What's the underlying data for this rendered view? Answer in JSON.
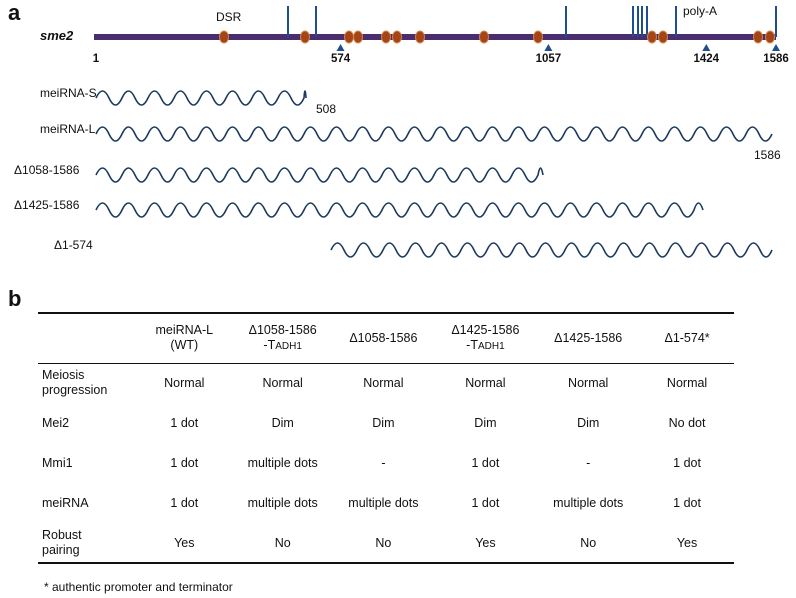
{
  "panel_a": {
    "letter": "a",
    "gene_label": "sme2",
    "dsr_label": "DSR",
    "polya_label": "poly-A",
    "start_label": "1",
    "tick_labels": [
      "574",
      "1057",
      "1424",
      "1586"
    ],
    "gene_length": 1586,
    "tick_positions": [
      574,
      1057,
      1424,
      1586
    ],
    "vertical_marks": [
      10,
      1,
      1136,
      1163,
      1176,
      1188,
      1203,
      1268,
      1293,
      1344,
      1389
    ],
    "dsr_motifs": [
      201,
      314,
      370,
      421,
      445,
      458,
      477,
      498,
      582,
      1000,
      1056
    ],
    "motif_positions": [
      201,
      314,
      370,
      421,
      458,
      477,
      582,
      1001,
      1056,
      1248,
      1316,
      1339,
      1424,
      1564,
      1584
    ],
    "constructs": [
      {
        "label": "meiRNA-S",
        "start": 1,
        "end": 508,
        "end_label": "508"
      },
      {
        "label": "meiRNA-L",
        "start": 1,
        "end": 1586,
        "end_label": "1586"
      },
      {
        "label": "Δ1058-1586",
        "start": 1,
        "end": 1057,
        "end_label": ""
      },
      {
        "label": "Δ1425-1586",
        "start": 1,
        "end": 1424,
        "end_label": ""
      },
      {
        "label": "Δ1-574",
        "start": 575,
        "end": 1586,
        "end_label": ""
      }
    ],
    "colors": {
      "bar": "#4a2d6e",
      "mark": "#1f4e8c",
      "motif": "#b5461b",
      "motif_fill": "#a34517",
      "wave": "#1c3a5e"
    }
  },
  "panel_b": {
    "letter": "b",
    "columns": [
      {
        "line1": "",
        "line2": "",
        "small": ""
      },
      {
        "line1": "meiRNA-L",
        "line2": "(WT)",
        "small": ""
      },
      {
        "line1": "Δ1058-1586",
        "line2": "-T",
        "small": "ADH1"
      },
      {
        "line1": "Δ1058-1586",
        "line2": "",
        "small": ""
      },
      {
        "line1": "Δ1425-1586",
        "line2": "-T",
        "small": "ADH1"
      },
      {
        "line1": "Δ1425-1586",
        "line2": "",
        "small": ""
      },
      {
        "line1": "Δ1-574*",
        "line2": "",
        "small": ""
      }
    ],
    "rows": [
      {
        "head1": "Meiosis",
        "head2": "progression",
        "cells": [
          "Normal",
          "Normal",
          "Normal",
          "Normal",
          "Normal",
          "Normal"
        ]
      },
      {
        "head1": "Mei2",
        "head2": "",
        "cells": [
          "1 dot",
          "Dim",
          "Dim",
          "Dim",
          "Dim",
          "No dot"
        ]
      },
      {
        "head1": "Mmi1",
        "head2": "",
        "cells": [
          "1 dot",
          "multiple dots",
          "-",
          "1 dot",
          "-",
          "1 dot"
        ]
      },
      {
        "head1": "meiRNA",
        "head2": "",
        "cells": [
          "1 dot",
          "multiple dots",
          "multiple dots",
          "1 dot",
          "multiple dots",
          "1 dot"
        ]
      },
      {
        "head1": "Robust",
        "head2": "pairing",
        "cells": [
          "Yes",
          "No",
          "No",
          "Yes",
          "No",
          "Yes"
        ]
      }
    ],
    "footnote": "* authentic promoter and terminator"
  }
}
